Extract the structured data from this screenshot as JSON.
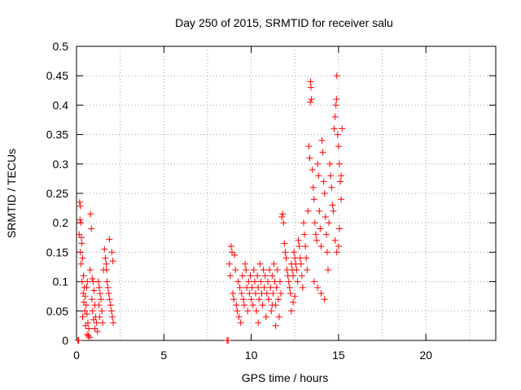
{
  "chart_data": {
    "type": "scatter",
    "title": "Day 250 of 2015, SRMTID for receiver salu",
    "xlabel": "GPS time / hours",
    "ylabel": "SRMTID / TECUs",
    "xlim": [
      0,
      24
    ],
    "ylim": [
      0,
      0.5
    ],
    "x_ticks": [
      0,
      5,
      10,
      15,
      20
    ],
    "x_tick_labels": [
      "0",
      "5",
      "10",
      "15",
      "20"
    ],
    "y_ticks": [
      0,
      0.05,
      0.1,
      0.15,
      0.2,
      0.25,
      0.3,
      0.35,
      0.4,
      0.45,
      0.5
    ],
    "y_tick_labels": [
      "0",
      "0.05",
      "0.1",
      "0.15",
      "0.2",
      "0.25",
      "0.3",
      "0.35",
      "0.4",
      "0.45",
      "0.5"
    ],
    "grid": true,
    "marker": "plus",
    "marker_color": "#ff0000",
    "series": [
      {
        "name": "SRMTID",
        "points": [
          [
            0.08,
            0.0
          ],
          [
            0.12,
            0.0
          ],
          [
            8.62,
            0.0
          ],
          [
            8.68,
            0.0
          ],
          [
            0.18,
            0.235
          ],
          [
            0.22,
            0.228
          ],
          [
            0.2,
            0.205
          ],
          [
            0.24,
            0.2
          ],
          [
            0.15,
            0.18
          ],
          [
            0.28,
            0.175
          ],
          [
            0.3,
            0.165
          ],
          [
            0.22,
            0.15
          ],
          [
            0.35,
            0.14
          ],
          [
            0.26,
            0.13
          ],
          [
            0.4,
            0.11
          ],
          [
            0.32,
            0.1
          ],
          [
            0.45,
            0.09
          ],
          [
            0.38,
            0.08
          ],
          [
            0.5,
            0.075
          ],
          [
            0.42,
            0.065
          ],
          [
            0.55,
            0.06
          ],
          [
            0.48,
            0.05
          ],
          [
            0.6,
            0.045
          ],
          [
            0.35,
            0.04
          ],
          [
            0.65,
            0.03
          ],
          [
            0.52,
            0.025
          ],
          [
            0.7,
            0.02
          ],
          [
            0.6,
            0.01
          ],
          [
            0.75,
            0.005
          ],
          [
            0.68,
            0.008
          ],
          [
            0.8,
            0.215
          ],
          [
            0.85,
            0.19
          ],
          [
            0.78,
            0.12
          ],
          [
            0.9,
            0.105
          ],
          [
            0.95,
            0.1
          ],
          [
            1.0,
            0.085
          ],
          [
            0.88,
            0.07
          ],
          [
            1.05,
            0.06
          ],
          [
            0.92,
            0.05
          ],
          [
            1.1,
            0.04
          ],
          [
            0.98,
            0.035
          ],
          [
            1.15,
            0.03
          ],
          [
            1.05,
            0.02
          ],
          [
            1.2,
            0.015
          ],
          [
            1.25,
            0.1
          ],
          [
            1.3,
            0.09
          ],
          [
            1.35,
            0.08
          ],
          [
            1.4,
            0.07
          ],
          [
            1.28,
            0.06
          ],
          [
            1.45,
            0.05
          ],
          [
            1.32,
            0.04
          ],
          [
            1.5,
            0.03
          ],
          [
            1.55,
            0.12
          ],
          [
            1.6,
            0.155
          ],
          [
            1.65,
            0.14
          ],
          [
            1.7,
            0.13
          ],
          [
            1.75,
            0.1
          ],
          [
            1.8,
            0.09
          ],
          [
            1.85,
            0.08
          ],
          [
            1.9,
            0.07
          ],
          [
            1.95,
            0.06
          ],
          [
            2.0,
            0.05
          ],
          [
            2.05,
            0.04
          ],
          [
            2.1,
            0.03
          ],
          [
            1.88,
            0.172
          ],
          [
            2.02,
            0.15
          ],
          [
            1.72,
            0.12
          ],
          [
            2.08,
            0.135
          ],
          [
            0.58,
            0.09
          ],
          [
            0.62,
            0.1
          ],
          [
            8.75,
            0.13
          ],
          [
            8.8,
            0.11
          ],
          [
            8.85,
            0.16
          ],
          [
            8.9,
            0.15
          ],
          [
            8.95,
            0.08
          ],
          [
            9.0,
            0.07
          ],
          [
            9.05,
            0.145
          ],
          [
            9.1,
            0.12
          ],
          [
            9.15,
            0.06
          ],
          [
            9.2,
            0.05
          ],
          [
            9.25,
            0.1
          ],
          [
            9.3,
            0.04
          ],
          [
            9.35,
            0.09
          ],
          [
            9.4,
            0.03
          ],
          [
            9.45,
            0.08
          ],
          [
            9.5,
            0.11
          ],
          [
            9.55,
            0.07
          ],
          [
            9.6,
            0.06
          ],
          [
            9.65,
            0.13
          ],
          [
            9.7,
            0.12
          ],
          [
            9.75,
            0.09
          ],
          [
            9.8,
            0.05
          ],
          [
            9.85,
            0.1
          ],
          [
            9.9,
            0.08
          ],
          [
            9.95,
            0.11
          ],
          [
            10.0,
            0.07
          ],
          [
            10.05,
            0.09
          ],
          [
            10.1,
            0.06
          ],
          [
            10.15,
            0.12
          ],
          [
            10.2,
            0.1
          ],
          [
            10.25,
            0.08
          ],
          [
            10.3,
            0.05
          ],
          [
            10.35,
            0.11
          ],
          [
            10.4,
            0.09
          ],
          [
            10.45,
            0.07
          ],
          [
            10.5,
            0.13
          ],
          [
            10.55,
            0.1
          ],
          [
            10.6,
            0.08
          ],
          [
            10.65,
            0.06
          ],
          [
            10.7,
            0.12
          ],
          [
            10.75,
            0.09
          ],
          [
            10.8,
            0.11
          ],
          [
            10.85,
            0.04
          ],
          [
            10.9,
            0.08
          ],
          [
            10.95,
            0.1
          ],
          [
            11.0,
            0.07
          ],
          [
            11.05,
            0.12
          ],
          [
            11.1,
            0.09
          ],
          [
            11.15,
            0.05
          ],
          [
            11.2,
            0.11
          ],
          [
            11.25,
            0.08
          ],
          [
            11.3,
            0.13
          ],
          [
            11.35,
            0.1
          ],
          [
            11.4,
            0.06
          ],
          [
            11.45,
            0.09
          ],
          [
            11.5,
            0.12
          ],
          [
            11.55,
            0.07
          ],
          [
            11.6,
            0.04
          ],
          [
            11.65,
            0.1
          ],
          [
            11.7,
            0.08
          ],
          [
            11.75,
            0.21
          ],
          [
            11.8,
            0.215
          ],
          [
            11.85,
            0.2
          ],
          [
            11.9,
            0.165
          ],
          [
            11.95,
            0.15
          ],
          [
            12.0,
            0.14
          ],
          [
            12.05,
            0.12
          ],
          [
            12.1,
            0.11
          ],
          [
            12.15,
            0.1
          ],
          [
            12.2,
            0.09
          ],
          [
            12.25,
            0.08
          ],
          [
            12.3,
            0.13
          ],
          [
            12.35,
            0.12
          ],
          [
            12.4,
            0.11
          ],
          [
            12.45,
            0.15
          ],
          [
            12.5,
            0.14
          ],
          [
            12.55,
            0.13
          ],
          [
            12.6,
            0.12
          ],
          [
            12.65,
            0.1
          ],
          [
            12.7,
            0.17
          ],
          [
            12.75,
            0.16
          ],
          [
            12.8,
            0.14
          ],
          [
            12.85,
            0.13
          ],
          [
            12.9,
            0.11
          ],
          [
            12.95,
            0.09
          ],
          [
            13.0,
            0.2
          ],
          [
            13.05,
            0.18
          ],
          [
            13.1,
            0.16
          ],
          [
            13.15,
            0.14
          ],
          [
            13.2,
            0.12
          ],
          [
            13.25,
            0.22
          ],
          [
            13.3,
            0.33
          ],
          [
            13.35,
            0.31
          ],
          [
            13.4,
            0.44
          ],
          [
            13.42,
            0.43
          ],
          [
            13.45,
            0.41
          ],
          [
            13.38,
            0.405
          ],
          [
            13.5,
            0.29
          ],
          [
            13.55,
            0.26
          ],
          [
            13.6,
            0.24
          ],
          [
            13.65,
            0.2
          ],
          [
            13.7,
            0.18
          ],
          [
            13.75,
            0.17
          ],
          [
            13.8,
            0.3
          ],
          [
            13.85,
            0.28
          ],
          [
            13.9,
            0.22
          ],
          [
            13.95,
            0.19
          ],
          [
            14.0,
            0.16
          ],
          [
            14.05,
            0.34
          ],
          [
            14.1,
            0.32
          ],
          [
            14.15,
            0.27
          ],
          [
            14.2,
            0.25
          ],
          [
            14.25,
            0.21
          ],
          [
            14.3,
            0.18
          ],
          [
            14.35,
            0.15
          ],
          [
            14.4,
            0.12
          ],
          [
            14.45,
            0.2
          ],
          [
            14.5,
            0.3
          ],
          [
            14.55,
            0.28
          ],
          [
            14.6,
            0.26
          ],
          [
            14.65,
            0.23
          ],
          [
            14.7,
            0.22
          ],
          [
            14.75,
            0.36
          ],
          [
            14.8,
            0.38
          ],
          [
            14.85,
            0.4
          ],
          [
            14.9,
            0.45
          ],
          [
            14.88,
            0.41
          ],
          [
            14.95,
            0.35
          ],
          [
            15.0,
            0.33
          ],
          [
            15.05,
            0.3
          ],
          [
            15.1,
            0.27
          ],
          [
            15.15,
            0.24
          ],
          [
            15.2,
            0.36
          ],
          [
            14.8,
            0.17
          ],
          [
            14.9,
            0.15
          ],
          [
            15.0,
            0.16
          ],
          [
            15.05,
            0.19
          ],
          [
            15.15,
            0.28
          ],
          [
            12.3,
            0.05
          ],
          [
            12.4,
            0.065
          ],
          [
            12.5,
            0.075
          ],
          [
            11.4,
            0.025
          ],
          [
            11.2,
            0.06
          ],
          [
            10.4,
            0.03
          ],
          [
            13.6,
            0.1
          ],
          [
            13.8,
            0.09
          ],
          [
            14.0,
            0.08
          ],
          [
            14.2,
            0.07
          ]
        ]
      }
    ]
  }
}
